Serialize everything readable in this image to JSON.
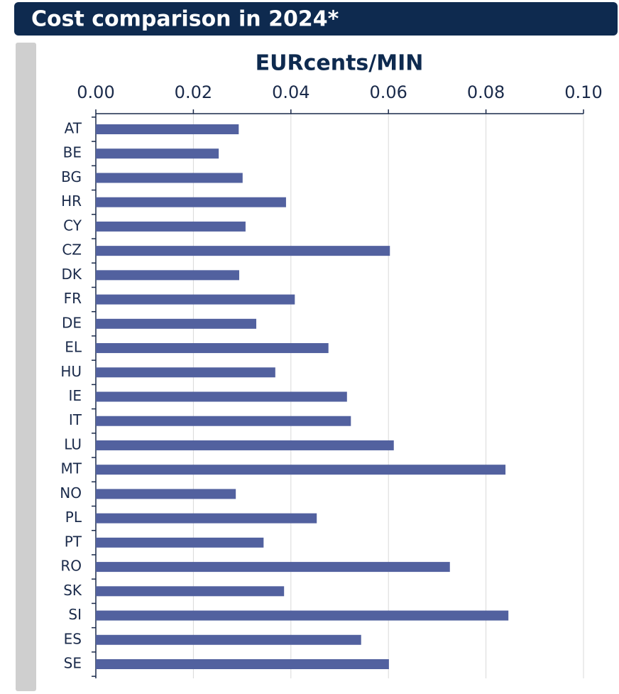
{
  "chart_data": {
    "type": "bar",
    "orientation": "horizontal",
    "title": "Cost comparison in 2024*",
    "x_label": "EURcents/MIN",
    "categories": [
      "AT",
      "BE",
      "BG",
      "HR",
      "CY",
      "CZ",
      "DK",
      "FR",
      "DE",
      "EL",
      "HU",
      "IE",
      "IT",
      "LU",
      "MT",
      "NO",
      "PL",
      "PT",
      "RO",
      "SK",
      "SI",
      "ES",
      "SE"
    ],
    "values": [
      0.0293,
      0.0252,
      0.0301,
      0.039,
      0.0307,
      0.0603,
      0.0294,
      0.0408,
      0.0329,
      0.0477,
      0.0368,
      0.0515,
      0.0523,
      0.0611,
      0.084,
      0.0287,
      0.0453,
      0.0344,
      0.0726,
      0.0386,
      0.0846,
      0.0544,
      0.0601
    ],
    "color": "#52619f",
    "xlim": [
      0,
      0.1
    ],
    "xticks": [
      {
        "value": 0,
        "label": "0.00"
      },
      {
        "value": 0.02,
        "label": "0.02"
      },
      {
        "value": 0.04,
        "label": "0.04"
      },
      {
        "value": 0.06,
        "label": "0.06"
      },
      {
        "value": 0.08,
        "label": "0.08"
      },
      {
        "value": 0.1,
        "label": "0.10"
      }
    ],
    "grid": true
  }
}
